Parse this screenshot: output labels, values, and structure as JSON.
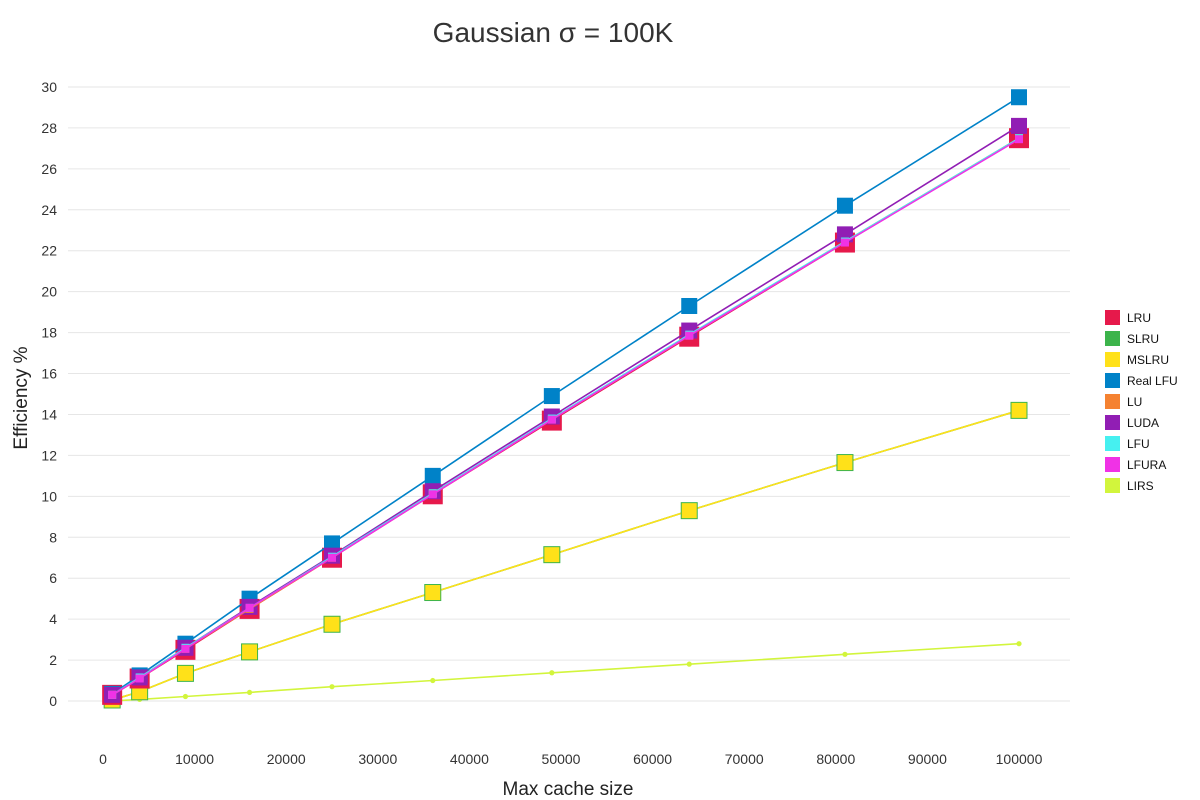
{
  "chart_data": {
    "type": "line",
    "title": "Gaussian σ = 100K",
    "xlabel": "Max cache size",
    "ylabel": "Efficiency %",
    "xlim": [
      0,
      100000
    ],
    "ylim": [
      0,
      30
    ],
    "x_ticks": [
      0,
      10000,
      20000,
      30000,
      40000,
      50000,
      60000,
      70000,
      80000,
      90000,
      100000
    ],
    "y_ticks": [
      0,
      2,
      4,
      6,
      8,
      10,
      12,
      14,
      16,
      18,
      20,
      22,
      24,
      26,
      28,
      30
    ],
    "grid": true,
    "legend_position": "right",
    "x": [
      1000,
      4000,
      9000,
      16000,
      25000,
      36000,
      49000,
      64000,
      81000,
      100000
    ],
    "series": [
      {
        "name": "LRU",
        "color": "#e6194b",
        "marker": "square-large",
        "values": [
          0.3,
          1.1,
          2.5,
          4.5,
          7.0,
          10.1,
          13.7,
          17.8,
          22.4,
          27.5
        ]
      },
      {
        "name": "SLRU",
        "color": "#3cb44b",
        "marker": "square",
        "values": [
          0.05,
          0.45,
          1.35,
          2.4,
          3.75,
          5.3,
          7.15,
          9.3,
          11.65,
          14.2
        ]
      },
      {
        "name": "MSLRU",
        "color": "#ffe119",
        "marker": "square",
        "values": [
          0.05,
          0.45,
          1.35,
          2.4,
          3.75,
          5.3,
          7.15,
          9.3,
          11.65,
          14.2
        ]
      },
      {
        "name": "Real LFU",
        "color": "#0082c8",
        "marker": "square",
        "values": [
          0.35,
          1.25,
          2.8,
          5.0,
          7.7,
          11.0,
          14.9,
          19.3,
          24.2,
          29.5
        ]
      },
      {
        "name": "LU",
        "color": "#f58231",
        "marker": "small",
        "values": [
          0.3,
          1.1,
          2.55,
          4.5,
          7.0,
          10.15,
          13.75,
          17.85,
          22.45,
          27.5
        ]
      },
      {
        "name": "LUDA",
        "color": "#911eb4",
        "marker": "square",
        "values": [
          0.3,
          1.15,
          2.6,
          4.6,
          7.1,
          10.25,
          13.9,
          18.1,
          22.8,
          28.1
        ]
      },
      {
        "name": "LFU",
        "color": "#46f0f0",
        "marker": "small",
        "values": [
          0.3,
          1.15,
          2.6,
          4.55,
          7.05,
          10.15,
          13.8,
          17.9,
          22.45,
          27.5
        ]
      },
      {
        "name": "LFURA",
        "color": "#f032e6",
        "marker": "small",
        "values": [
          0.3,
          1.1,
          2.55,
          4.55,
          7.0,
          10.1,
          13.75,
          17.85,
          22.4,
          27.45
        ]
      },
      {
        "name": "LIRS",
        "color": "#d2f53c",
        "marker": "dot",
        "values": [
          0.0,
          0.08,
          0.22,
          0.42,
          0.7,
          1.0,
          1.38,
          1.8,
          2.28,
          2.8
        ]
      }
    ]
  }
}
